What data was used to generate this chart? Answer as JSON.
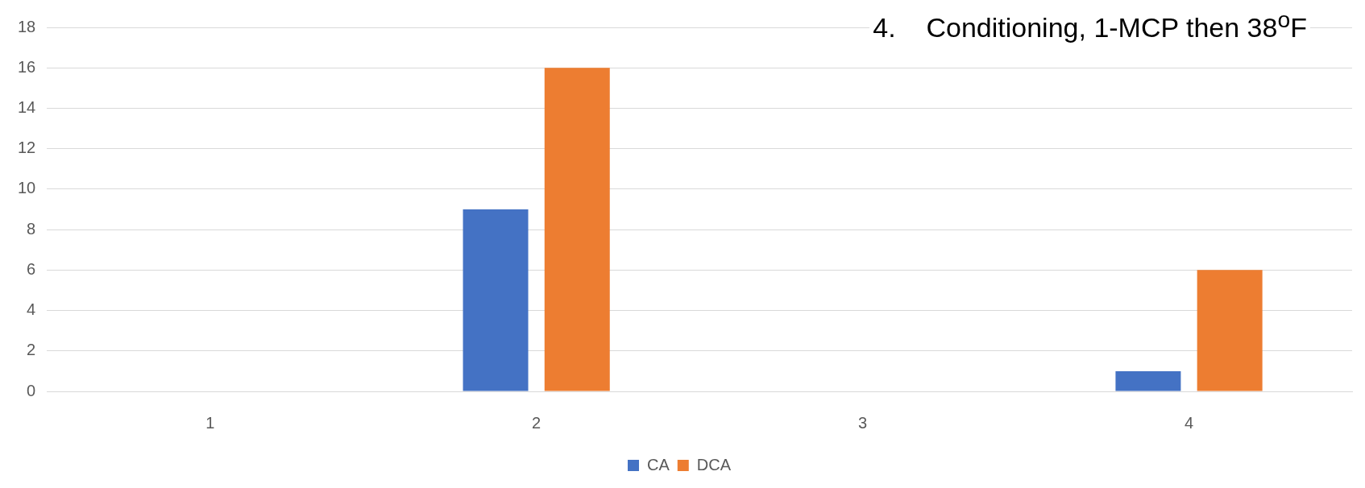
{
  "chart_data": {
    "type": "bar",
    "title": "4.    Conditioning, 1-MCP then 38$^{o}$F",
    "categories": [
      "1",
      "2",
      "3",
      "4"
    ],
    "series": [
      {
        "name": "CA",
        "color": "#4472c4",
        "values": [
          0,
          9,
          0,
          1
        ]
      },
      {
        "name": "DCA",
        "color": "#ed7d31",
        "values": [
          0,
          16,
          0,
          6
        ]
      }
    ],
    "ylim": [
      0,
      18
    ],
    "yticks": [
      0,
      2,
      4,
      6,
      8,
      10,
      12,
      14,
      16,
      18
    ],
    "grid": "y",
    "legend": "bottom"
  }
}
